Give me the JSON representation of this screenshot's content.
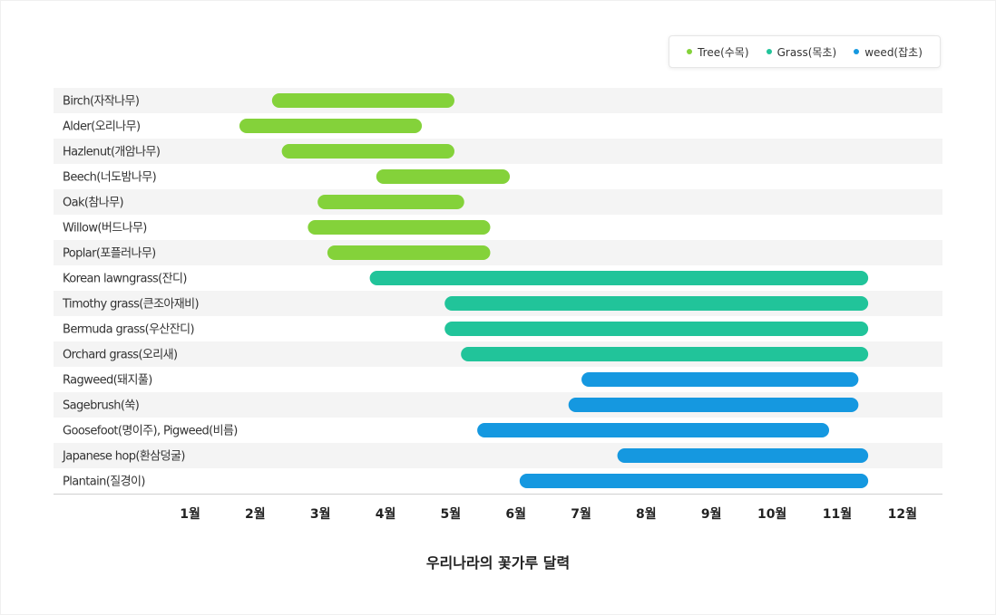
{
  "chart_data": {
    "type": "range-bar",
    "title": "우리나라의 꽃가루 달력",
    "x_ticks": [
      "1월",
      "2월",
      "3월",
      "4월",
      "5월",
      "6월",
      "7월",
      "8월",
      "9월",
      "10월",
      "11월",
      "12월"
    ],
    "x_range": [
      0,
      12
    ],
    "legend": {
      "placement": "top-right",
      "entries": [
        {
          "name": "Tree(수목)",
          "color": "#84d23a"
        },
        {
          "name": "Grass(목초)",
          "color": "#21c49a"
        },
        {
          "name": "weed(잡초)",
          "color": "#1598e0"
        }
      ]
    },
    "rows": [
      {
        "label": "Birch(자작나무)",
        "group": 0,
        "start": 2.1,
        "end": 4.9
      },
      {
        "label": "Alder(오리나무)",
        "group": 0,
        "start": 1.6,
        "end": 4.4
      },
      {
        "label": "Hazlenut(개암나무)",
        "group": 0,
        "start": 2.25,
        "end": 4.9
      },
      {
        "label": "Beech(너도밤나무)",
        "group": 0,
        "start": 3.7,
        "end": 5.75
      },
      {
        "label": "Oak(참나무)",
        "group": 0,
        "start": 2.8,
        "end": 5.05
      },
      {
        "label": "Willow(버드나무)",
        "group": 0,
        "start": 2.65,
        "end": 5.45
      },
      {
        "label": "Poplar(포플러나무)",
        "group": 0,
        "start": 2.95,
        "end": 5.45
      },
      {
        "label": "Korean lawngrass(잔디)",
        "group": 1,
        "start": 3.6,
        "end": 11.25
      },
      {
        "label": "Timothy grass(큰조아재비)",
        "group": 1,
        "start": 4.75,
        "end": 11.25
      },
      {
        "label": "Bermuda grass(우산잔디)",
        "group": 1,
        "start": 4.75,
        "end": 11.25
      },
      {
        "label": "Orchard grass(오리새)",
        "group": 1,
        "start": 5.0,
        "end": 11.25
      },
      {
        "label": "Ragweed(돼지풀)",
        "group": 2,
        "start": 6.85,
        "end": 11.1
      },
      {
        "label": "Sagebrush(쑥)",
        "group": 2,
        "start": 6.65,
        "end": 11.1
      },
      {
        "label": "Goosefoot(명이주), Pigweed(비름)",
        "group": 2,
        "start": 5.25,
        "end": 10.65
      },
      {
        "label": "Japanese hop(환삼덩굴)",
        "group": 2,
        "start": 7.4,
        "end": 11.25
      },
      {
        "label": "Plantain(질경이)",
        "group": 2,
        "start": 5.9,
        "end": 11.25
      }
    ],
    "grid": false
  }
}
